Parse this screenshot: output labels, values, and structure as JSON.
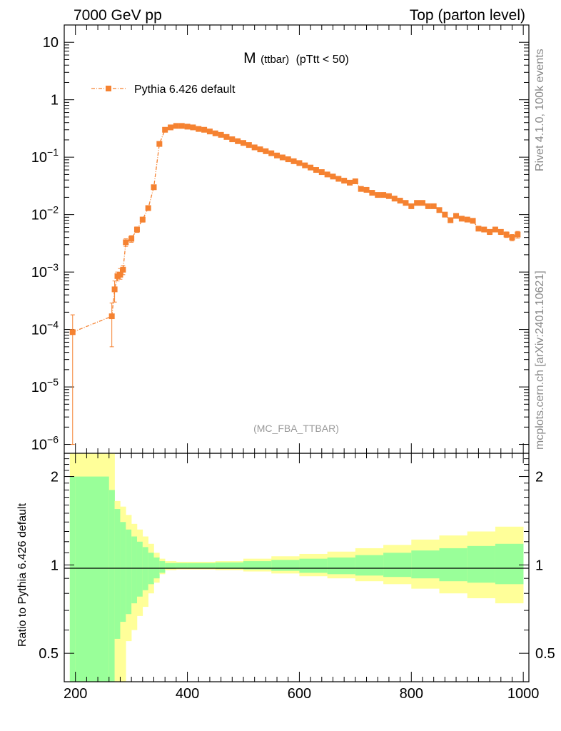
{
  "header": {
    "left": "7000 GeV pp",
    "right": "Top (parton level)"
  },
  "side_labels": {
    "rivet": "Rivet 4.1.0,  100k events",
    "mcplots": "mcplots.cern.ch [arXiv:2401.10621]"
  },
  "colors": {
    "series": "#f58231",
    "band_inner": "#99ff99",
    "band_outer": "#ffff99"
  },
  "chart_data": [
    {
      "type": "line",
      "title_main": "M",
      "title_sub": "(ttbar)",
      "title_cut": "(pTtt < 50)",
      "watermark": "(MC_FBA_TTBAR)",
      "yscale": "log",
      "xlim": [
        180,
        1010
      ],
      "ylim": [
        7e-07,
        20
      ],
      "ytick_values": [
        1e-06,
        1e-05,
        0.0001,
        0.001,
        0.01,
        0.1,
        1,
        10
      ],
      "ytick_labels": [
        {
          "base": "10",
          "exp": "−6"
        },
        {
          "base": "10",
          "exp": "−5"
        },
        {
          "base": "10",
          "exp": "−4"
        },
        {
          "base": "10",
          "exp": "−3"
        },
        {
          "base": "10",
          "exp": "−2"
        },
        {
          "base": "10",
          "exp": "−1"
        },
        {
          "base": "1",
          "exp": ""
        },
        {
          "base": "10",
          "exp": ""
        }
      ],
      "legend": {
        "placement": "top-left",
        "label": "Pythia 6.426 default"
      },
      "series": [
        {
          "name": "Pythia 6.426 default",
          "x": [
            195,
            265,
            270,
            275,
            280,
            285,
            290,
            300,
            310,
            320,
            330,
            340,
            350,
            360,
            370,
            380,
            390,
            400,
            410,
            420,
            430,
            440,
            450,
            460,
            470,
            480,
            490,
            500,
            510,
            520,
            530,
            540,
            550,
            560,
            570,
            580,
            590,
            600,
            610,
            620,
            630,
            640,
            650,
            660,
            670,
            680,
            690,
            700,
            710,
            720,
            730,
            740,
            750,
            760,
            770,
            780,
            790,
            800,
            810,
            820,
            830,
            840,
            850,
            860,
            870,
            880,
            890,
            900,
            910,
            920,
            930,
            940,
            950,
            960,
            970,
            980,
            990
          ],
          "y": [
            9e-05,
            0.00017,
            0.0005,
            0.00085,
            0.0009,
            0.0011,
            0.0033,
            0.0038,
            0.0055,
            0.0082,
            0.013,
            0.03,
            0.17,
            0.3,
            0.33,
            0.35,
            0.35,
            0.34,
            0.33,
            0.31,
            0.3,
            0.28,
            0.26,
            0.245,
            0.225,
            0.205,
            0.19,
            0.177,
            0.163,
            0.148,
            0.137,
            0.127,
            0.117,
            0.107,
            0.099,
            0.092,
            0.085,
            0.079,
            0.072,
            0.066,
            0.06,
            0.055,
            0.05,
            0.046,
            0.042,
            0.039,
            0.036,
            0.038,
            0.028,
            0.027,
            0.024,
            0.022,
            0.022,
            0.021,
            0.019,
            0.0175,
            0.016,
            0.014,
            0.016,
            0.016,
            0.014,
            0.014,
            0.012,
            0.01,
            0.008,
            0.0095,
            0.0085,
            0.0082,
            0.0078,
            0.0057,
            0.0055,
            0.005,
            0.0055,
            0.005,
            0.0045,
            0.004,
            0.0045
          ],
          "y_err_low": [
            8.9e-05,
            0.00012,
            0.0002,
            0.00015,
            0.00015,
            0.0002,
            0.0005,
            0.0005,
            0.0006,
            0.0008,
            0.001,
            0.002,
            0.008,
            0.01,
            0.01,
            0.01,
            0.01,
            0.01,
            0.01,
            0.009,
            0.009,
            0.008,
            0.007,
            0.007,
            0.006,
            0.006,
            0.005,
            0.005,
            0.005,
            0.004,
            0.004,
            0.004,
            0.004,
            0.003,
            0.003,
            0.003,
            0.003,
            0.003,
            0.002,
            0.002,
            0.002,
            0.002,
            0.002,
            0.002,
            0.002,
            0.002,
            0.002,
            0.002,
            0.0015,
            0.0015,
            0.0014,
            0.0013,
            0.0013,
            0.0013,
            0.0012,
            0.0011,
            0.001,
            0.0009,
            0.001,
            0.001,
            0.0009,
            0.0009,
            0.0008,
            0.0007,
            0.0006,
            0.0007,
            0.0006,
            0.0006,
            0.0006,
            0.0005,
            0.0005,
            0.0005,
            0.0005,
            0.0005,
            0.0005,
            0.0005,
            0.0006
          ],
          "y_err_high": [
            9e-05,
            0.00012,
            0.0002,
            0.00015,
            0.00025,
            0.0002,
            0.0005,
            0.0005,
            0.0006,
            0.0008,
            0.001,
            0.002,
            0.008,
            0.01,
            0.01,
            0.01,
            0.01,
            0.01,
            0.01,
            0.009,
            0.009,
            0.008,
            0.007,
            0.007,
            0.006,
            0.006,
            0.005,
            0.005,
            0.005,
            0.004,
            0.004,
            0.004,
            0.004,
            0.003,
            0.003,
            0.003,
            0.003,
            0.003,
            0.002,
            0.002,
            0.002,
            0.002,
            0.002,
            0.002,
            0.002,
            0.002,
            0.002,
            0.002,
            0.0015,
            0.0015,
            0.0014,
            0.0013,
            0.0013,
            0.0013,
            0.0012,
            0.0011,
            0.001,
            0.0009,
            0.001,
            0.001,
            0.0009,
            0.0009,
            0.0008,
            0.0007,
            0.0006,
            0.0007,
            0.0006,
            0.0006,
            0.0006,
            0.0005,
            0.0005,
            0.0005,
            0.0005,
            0.0005,
            0.0005,
            0.0005,
            0.0006
          ]
        }
      ]
    },
    {
      "type": "area",
      "ylabel": "Ratio to Pythia 6.426 default",
      "yscale": "log",
      "xlim": [
        180,
        1010
      ],
      "ylim": [
        0.4,
        2.4
      ],
      "ytick_labels": [
        "0.5",
        "1",
        "2"
      ],
      "ytick_values": [
        0.5,
        1,
        2
      ],
      "xtick_labels": [
        "200",
        "400",
        "600",
        "800",
        "1000"
      ],
      "xtick_values": [
        200,
        400,
        600,
        800,
        1000
      ],
      "reference_line": 1,
      "bands": {
        "x_edges": [
          190,
          200,
          260,
          270,
          280,
          290,
          300,
          310,
          320,
          330,
          340,
          350,
          360,
          380,
          400,
          450,
          500,
          550,
          600,
          650,
          700,
          750,
          800,
          850,
          900,
          950,
          1000
        ],
        "inner_low": [
          0.3,
          0.3,
          0.3,
          0.56,
          0.64,
          0.68,
          0.74,
          0.78,
          0.82,
          0.86,
          0.9,
          0.94,
          0.97,
          0.975,
          0.975,
          0.97,
          0.965,
          0.955,
          0.94,
          0.93,
          0.92,
          0.91,
          0.9,
          0.88,
          0.87,
          0.86
        ],
        "inner_high": [
          2.0,
          2.0,
          1.8,
          1.55,
          1.4,
          1.32,
          1.25,
          1.2,
          1.15,
          1.1,
          1.06,
          1.03,
          1.015,
          1.015,
          1.015,
          1.02,
          1.03,
          1.04,
          1.05,
          1.06,
          1.08,
          1.1,
          1.12,
          1.14,
          1.16,
          1.18
        ],
        "outer_low": [
          0.3,
          0.3,
          0.3,
          0.3,
          0.38,
          0.55,
          0.6,
          0.67,
          0.72,
          0.8,
          0.87,
          0.93,
          0.96,
          0.965,
          0.965,
          0.96,
          0.95,
          0.935,
          0.915,
          0.9,
          0.88,
          0.86,
          0.83,
          0.8,
          0.77,
          0.74
        ],
        "outer_high": [
          2.4,
          2.4,
          2.4,
          1.65,
          1.58,
          1.48,
          1.38,
          1.32,
          1.25,
          1.18,
          1.1,
          1.05,
          1.03,
          1.025,
          1.025,
          1.03,
          1.05,
          1.07,
          1.09,
          1.11,
          1.14,
          1.17,
          1.22,
          1.26,
          1.3,
          1.35
        ]
      }
    }
  ]
}
